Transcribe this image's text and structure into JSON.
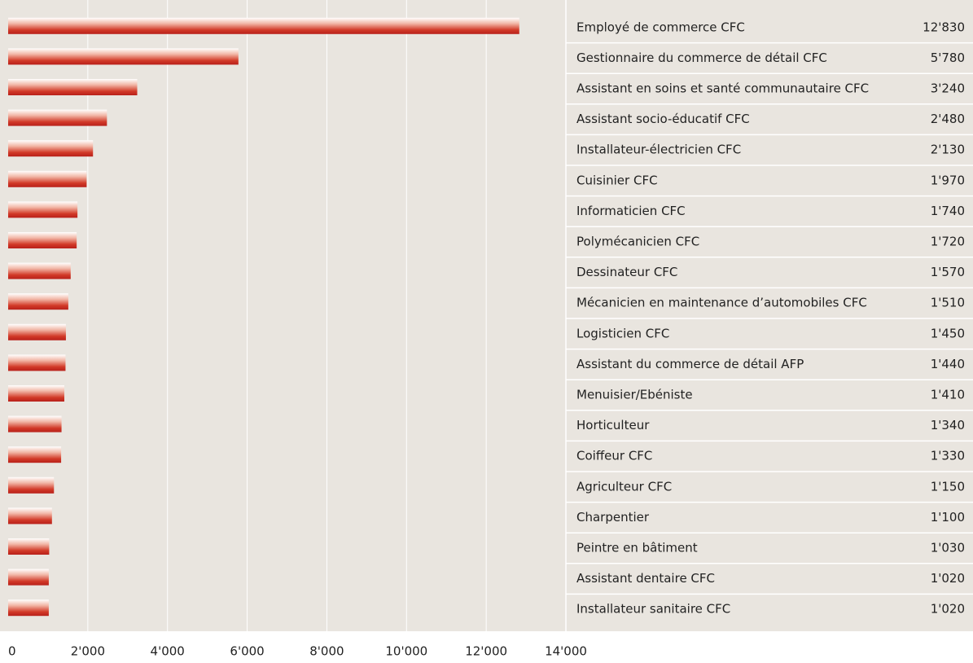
{
  "chart_data": {
    "type": "bar",
    "orientation": "horizontal",
    "categories": [
      "Employé de commerce CFC",
      "Gestionnaire du commerce de détail CFC",
      "Assistant en soins et santé communautaire CFC",
      "Assistant socio-éducatif CFC",
      "Installateur-électricien CFC",
      "Cuisinier CFC",
      "Informaticien CFC",
      "Polymécanicien CFC",
      "Dessinateur CFC",
      "Mécanicien en maintenance d’automobiles CFC",
      "Logisticien CFC",
      "Assistant du commerce de détail AFP",
      "Menuisier/Ebéniste",
      "Horticulteur",
      "Coiffeur CFC",
      "Agriculteur CFC",
      "Charpentier",
      "Peintre en bâtiment",
      "Assistant dentaire CFC",
      "Installateur sanitaire CFC"
    ],
    "values": [
      12830,
      5780,
      3240,
      2480,
      2130,
      1970,
      1740,
      1720,
      1570,
      1510,
      1450,
      1440,
      1410,
      1340,
      1330,
      1150,
      1100,
      1030,
      1020,
      1020
    ],
    "value_labels": [
      "12'830",
      "5'780",
      "3'240",
      "2'480",
      "2'130",
      "1'970",
      "1'740",
      "1'720",
      "1'570",
      "1'510",
      "1'450",
      "1'440",
      "1'410",
      "1'340",
      "1'330",
      "1'150",
      "1'100",
      "1'030",
      "1'020",
      "1'020"
    ],
    "color": "#c8281e",
    "xlim": [
      0,
      14000
    ],
    "xticks": [
      0,
      {
        "value": 2000,
        "label": "2'000"
      },
      {
        "value": 4000,
        "label": "4'000"
      },
      {
        "value": 6000,
        "label": "6'000"
      },
      {
        "value": 8000,
        "label": "8'000"
      },
      {
        "value": 10000,
        "label": "10'000"
      },
      {
        "value": 12000,
        "label": "12'000"
      },
      {
        "value": 14000,
        "label": "14'000"
      }
    ],
    "grid": true
  }
}
